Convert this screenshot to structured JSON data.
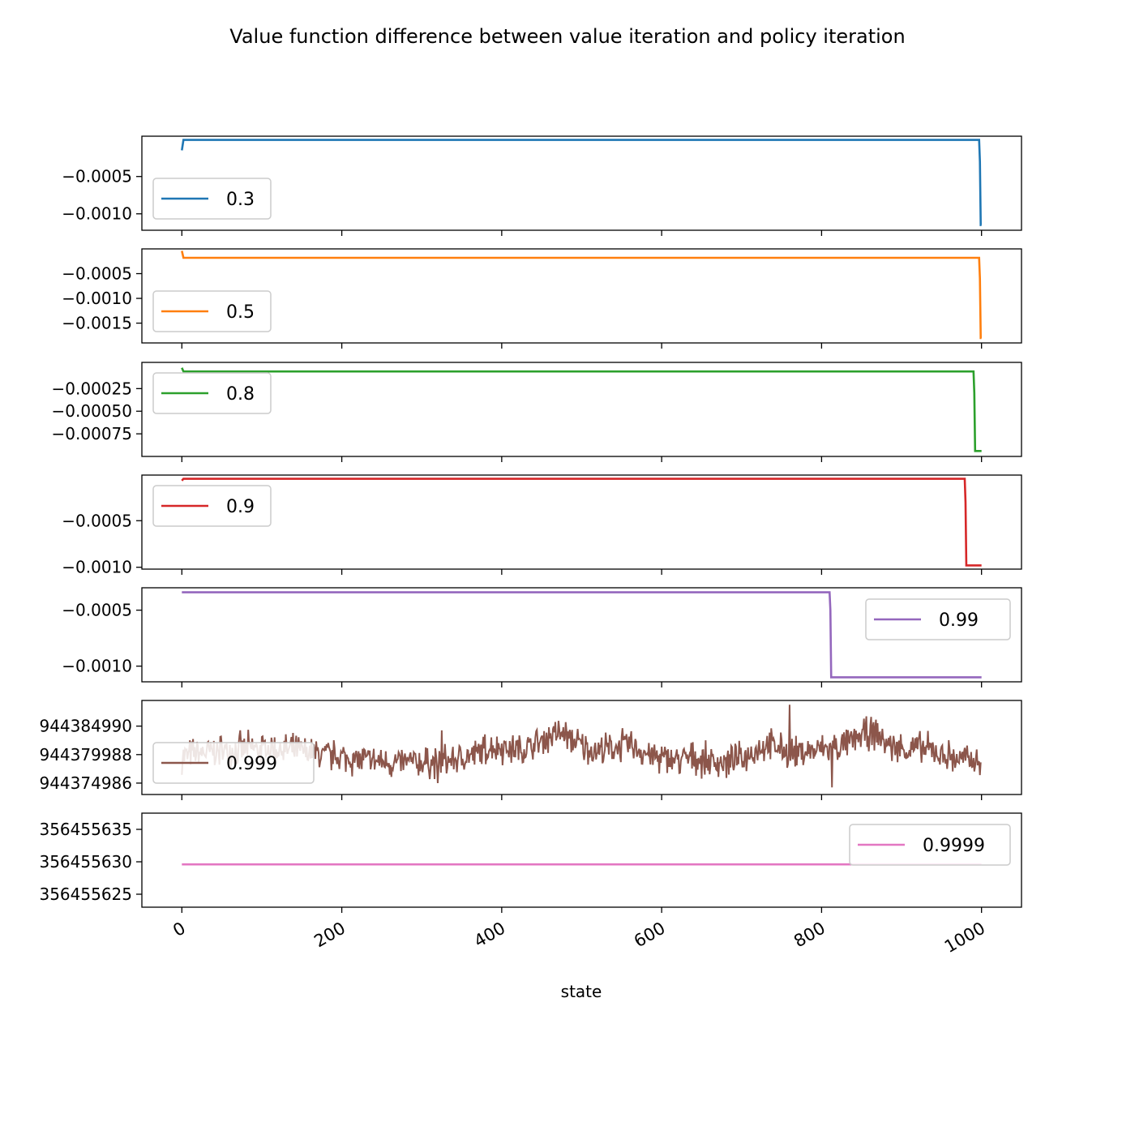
{
  "chart_data": {
    "type": "line",
    "title": "Value function difference between value iteration and policy iteration",
    "xlabel": "state",
    "x_ticks": [
      "0",
      "200",
      "400",
      "600",
      "800",
      "1000"
    ],
    "xlim": [
      -50,
      1050
    ],
    "grid": false,
    "panels": [
      {
        "series_name": "0.3",
        "color": "#1f77b4",
        "legend_position": "lower-left",
        "y_ticks": [
          {
            "value": -0.0005,
            "label": "−0.0005"
          },
          {
            "value": -0.001,
            "label": "−0.0010"
          }
        ],
        "ylim": [
          -0.00122,
          4e-05
        ],
        "points": [
          [
            0,
            -0.00015
          ],
          [
            2,
            -1e-05
          ],
          [
            3,
            -1e-05
          ],
          [
            997,
            -1e-05
          ],
          [
            998,
            -0.0003
          ],
          [
            999,
            -0.00115
          ],
          [
            1000,
            -0.00115
          ]
        ]
      },
      {
        "series_name": "0.5",
        "color": "#ff7f0e",
        "legend_position": "lower-left",
        "y_ticks": [
          {
            "value": -0.0005,
            "label": "−0.0005"
          },
          {
            "value": -0.001,
            "label": "−0.0010"
          },
          {
            "value": -0.0015,
            "label": "−0.0015"
          }
        ],
        "ylim": [
          -0.0019,
          0.0
        ],
        "points": [
          [
            0,
            -4e-05
          ],
          [
            2,
            -0.00018
          ],
          [
            3,
            -0.00018
          ],
          [
            997,
            -0.00018
          ],
          [
            998,
            -0.0006
          ],
          [
            999,
            -0.0018
          ],
          [
            1000,
            -0.0018
          ]
        ]
      },
      {
        "series_name": "0.8",
        "color": "#2ca02c",
        "legend_position": "upper-left",
        "y_ticks": [
          {
            "value": -0.00025,
            "label": "−0.00025"
          },
          {
            "value": -0.0005,
            "label": "−0.00050"
          },
          {
            "value": -0.00075,
            "label": "−0.00075"
          }
        ],
        "ylim": [
          -0.001,
          4e-05
        ],
        "points": [
          [
            0,
            -2e-05
          ],
          [
            2,
            -6e-05
          ],
          [
            3,
            -6e-05
          ],
          [
            990,
            -6e-05
          ],
          [
            991,
            -0.0003
          ],
          [
            992,
            -0.00094
          ],
          [
            1000,
            -0.00094
          ]
        ]
      },
      {
        "series_name": "0.9",
        "color": "#d62728",
        "legend_position": "upper-left",
        "y_ticks": [
          {
            "value": -0.0005,
            "label": "−0.0005"
          },
          {
            "value": -0.001,
            "label": "−0.0010"
          }
        ],
        "ylim": [
          -0.00102,
          -1e-05
        ],
        "points": [
          [
            0,
            -7e-05
          ],
          [
            2,
            -5e-05
          ],
          [
            3,
            -5e-05
          ],
          [
            979,
            -5e-05
          ],
          [
            980,
            -0.0003
          ],
          [
            981,
            -0.00098
          ],
          [
            1000,
            -0.00098
          ]
        ]
      },
      {
        "series_name": "0.99",
        "color": "#9467bd",
        "legend_position": "upper-right",
        "y_ticks": [
          {
            "value": -0.0005,
            "label": "−0.0005"
          },
          {
            "value": -0.001,
            "label": "−0.0010"
          }
        ],
        "ylim": [
          -0.00114,
          -0.0003
        ],
        "points": [
          [
            0,
            -0.00034
          ],
          [
            810,
            -0.00034
          ],
          [
            811,
            -0.0005
          ],
          [
            812,
            -0.0011
          ],
          [
            1000,
            -0.0011
          ]
        ]
      },
      {
        "series_name": "0.999",
        "color": "#8c564b",
        "legend_position": "lower-left",
        "y_ticks": [
          {
            "value": 0,
            "label": "944374986"
          },
          {
            "value": 1,
            "label": "944379988"
          },
          {
            "value": 2,
            "label": "944384990"
          }
        ],
        "ylim": [
          -0.4,
          2.9
        ],
        "noise": {
          "count": 1000,
          "base": 0.95,
          "low_ranges": [
            [
              390,
              0.25
            ],
            [
              470,
              0.55
            ],
            [
              560,
              0.35
            ],
            [
              640,
              0.15
            ],
            [
              730,
              0.45
            ],
            [
              800,
              0.05
            ],
            [
              860,
              0.55
            ],
            [
              930,
              0.2
            ]
          ],
          "amplitude": 0.5
        },
        "points": [
          [
            0,
            0.9
          ],
          [
            1000,
            0.9
          ]
        ]
      },
      {
        "series_name": "0.9999",
        "color": "#e377c2",
        "legend_position": "upper-right",
        "y_ticks": [
          {
            "value": 0,
            "label": "356455625"
          },
          {
            "value": 1,
            "label": "356455630"
          },
          {
            "value": 2,
            "label": "356455635"
          }
        ],
        "ylim": [
          -0.4,
          2.5
        ],
        "points": [
          [
            0,
            0.92
          ],
          [
            1000,
            0.92
          ]
        ]
      }
    ]
  }
}
